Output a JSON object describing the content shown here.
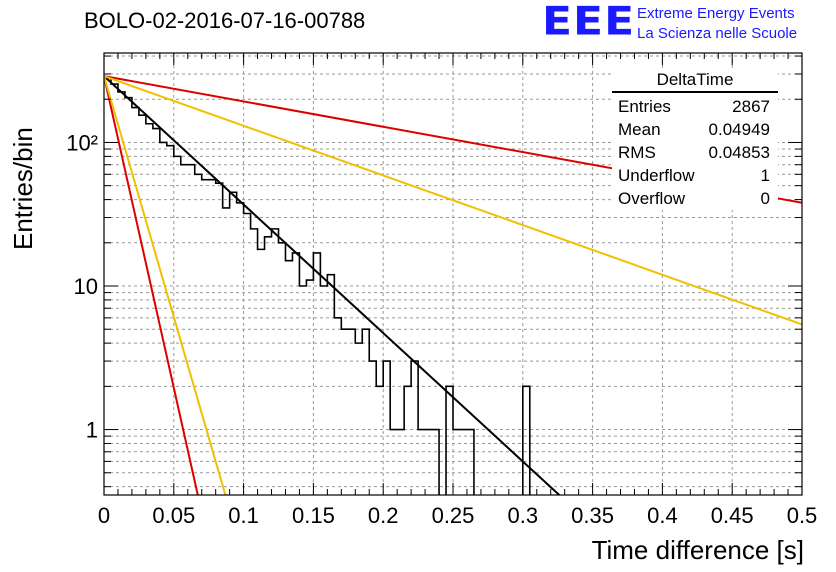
{
  "title": "BOLO-02-2016-07-16-00788",
  "logo": {
    "mark": "EEE",
    "line1": "Extreme Energy Events",
    "line2": "La Scienza nelle Scuole",
    "color": "#1a1aff"
  },
  "stats_box": {
    "name": "DeltaTime",
    "rows": [
      {
        "label": "Entries",
        "value": "2867"
      },
      {
        "label": "Mean",
        "value": "0.04949"
      },
      {
        "label": "RMS",
        "value": "0.04853"
      },
      {
        "label": "Underflow",
        "value": "1"
      },
      {
        "label": "Overflow",
        "value": "0"
      }
    ]
  },
  "chart_data": {
    "type": "line",
    "xlabel": "Time difference [s]",
    "ylabel": "Entries/bin",
    "xlim": [
      0,
      0.5
    ],
    "ylim": [
      0.35,
      420
    ],
    "y_scale": "log",
    "grid": true,
    "x_ticks": [
      0,
      0.05,
      0.1,
      0.15,
      0.2,
      0.25,
      0.3,
      0.35,
      0.4,
      0.45,
      0.5
    ],
    "x_tick_labels": [
      "0",
      "0.05",
      "0.1",
      "0.15",
      "0.2",
      "0.25",
      "0.3",
      "0.35",
      "0.4",
      "0.45",
      "0.5"
    ],
    "y_ticks": [
      1,
      10,
      100
    ],
    "y_tick_labels": [
      "1",
      "10",
      "10²"
    ],
    "histogram": {
      "bin_width": 0.005,
      "color": "#000000",
      "counts": [
        280,
        255,
        225,
        205,
        175,
        155,
        135,
        125,
        100,
        95,
        80,
        70,
        70,
        60,
        55,
        55,
        52,
        35,
        45,
        38,
        32,
        25,
        18,
        22,
        25,
        20,
        15,
        17,
        10,
        11,
        17,
        10,
        12,
        6,
        5,
        5,
        4,
        5,
        3,
        2,
        3,
        1,
        1,
        2,
        3,
        1,
        1,
        1,
        0.3,
        2,
        1,
        1,
        1,
        0.3,
        0,
        0,
        0,
        0,
        0,
        0.3,
        2,
        0.3,
        0,
        0,
        0,
        0.3,
        0,
        0,
        0,
        0,
        0,
        0,
        0,
        0,
        0,
        0,
        0,
        0,
        0,
        0,
        0,
        0,
        0,
        0,
        0,
        0,
        0,
        0,
        0,
        0,
        0,
        0,
        0,
        0,
        0,
        0,
        0,
        0,
        0,
        0
      ]
    },
    "series": [
      {
        "color": "#000000",
        "points": [
          [
            0,
            290
          ],
          [
            0.33,
            0.32
          ]
        ]
      },
      {
        "color": "#dd0000",
        "points": [
          [
            0,
            290
          ],
          [
            0.5,
            38
          ]
        ]
      },
      {
        "color": "#dd0000",
        "points": [
          [
            0,
            290
          ],
          [
            0.068,
            0.32
          ]
        ]
      },
      {
        "color": "#f0c000",
        "points": [
          [
            0,
            290
          ],
          [
            0.5,
            5.4
          ]
        ]
      },
      {
        "color": "#f0c000",
        "points": [
          [
            0,
            290
          ],
          [
            0.088,
            0.32
          ]
        ]
      }
    ]
  }
}
